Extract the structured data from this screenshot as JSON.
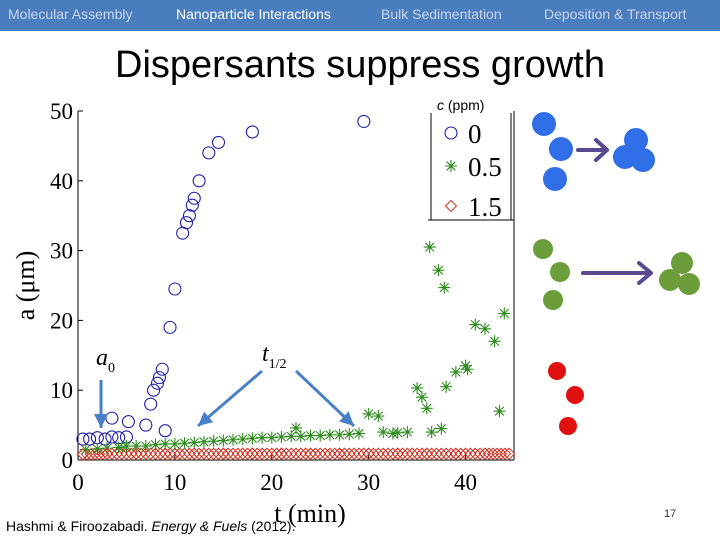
{
  "nav": {
    "items": [
      {
        "label": "Molecular Assembly",
        "active": false
      },
      {
        "label": "Nanoparticle Interactions",
        "active": true
      },
      {
        "label": "Bulk Sedimentation",
        "active": false
      },
      {
        "label": "Deposition & Transport",
        "active": false
      }
    ]
  },
  "slide": {
    "title": "Dispersants suppress growth",
    "legend_header_var": "c",
    "legend_header_unit": "(ppm)",
    "citation_authors": "Hashmi & Firoozabadi.",
    "citation_journal": "Energy & Fuels",
    "citation_year": "(2012).",
    "page_number": "17"
  },
  "annotations": {
    "a0_base": "a",
    "a0_sub": "0",
    "thalf_base": "t",
    "thalf_sub": "1/2"
  },
  "colors": {
    "series_0": "#1f1fa8",
    "series_05": "#2e8b1e",
    "series_15": "#d03020",
    "arrow": "#4a80c8",
    "cluster_blue": "#2f6ee6",
    "cluster_green": "#6b9e3a",
    "cluster_red": "#e01010",
    "cluster_arrow": "#5a4890"
  },
  "chart_data": {
    "type": "scatter",
    "title": "",
    "xlabel": "t (min)",
    "ylabel": "a (μm)",
    "xlim": [
      0,
      45
    ],
    "ylim": [
      0,
      50
    ],
    "xticks": [
      "0",
      "10",
      "20",
      "30",
      "40"
    ],
    "yticks": [
      "0",
      "10",
      "20",
      "30",
      "40",
      "50"
    ],
    "legend_position": "top-right",
    "series": [
      {
        "name": "0",
        "marker": "circle",
        "points": [
          [
            0.5,
            3
          ],
          [
            1.2,
            3
          ],
          [
            2,
            3.2
          ],
          [
            2.8,
            3
          ],
          [
            3.5,
            3.3
          ],
          [
            4.2,
            3.2
          ],
          [
            5,
            3.3
          ],
          [
            3.5,
            6
          ],
          [
            5.2,
            5.5
          ],
          [
            7,
            5
          ],
          [
            9,
            4.2
          ],
          [
            7.5,
            8
          ],
          [
            7.8,
            10
          ],
          [
            8.2,
            11
          ],
          [
            8.4,
            11.8
          ],
          [
            8.7,
            13
          ],
          [
            9.5,
            19
          ],
          [
            10,
            24.5
          ],
          [
            10.8,
            32.5
          ],
          [
            11.2,
            34
          ],
          [
            11.5,
            35
          ],
          [
            11.8,
            36.5
          ],
          [
            12,
            37.5
          ],
          [
            12.5,
            40
          ],
          [
            13.5,
            44
          ],
          [
            14.5,
            45.5
          ],
          [
            18,
            47
          ],
          [
            29.5,
            48.5
          ]
        ]
      },
      {
        "name": "0.5",
        "marker": "asterisk",
        "points": [
          [
            0.8,
            1.5
          ],
          [
            2,
            1.6
          ],
          [
            3,
            1.7
          ],
          [
            4.2,
            1.8
          ],
          [
            5,
            2
          ],
          [
            6,
            2
          ],
          [
            7,
            2
          ],
          [
            8,
            2.2
          ],
          [
            9,
            2.3
          ],
          [
            10,
            2.3
          ],
          [
            11,
            2.4
          ],
          [
            12,
            2.5
          ],
          [
            13,
            2.6
          ],
          [
            14,
            2.7
          ],
          [
            15,
            2.8
          ],
          [
            16,
            2.9
          ],
          [
            17,
            3
          ],
          [
            18,
            3.1
          ],
          [
            19,
            3.2
          ],
          [
            20,
            3.2
          ],
          [
            21,
            3.3
          ],
          [
            22,
            3.4
          ],
          [
            22.5,
            4.6
          ],
          [
            23,
            3.4
          ],
          [
            24,
            3.5
          ],
          [
            25,
            3.5
          ],
          [
            26,
            3.6
          ],
          [
            27,
            3.6
          ],
          [
            28,
            3.7
          ],
          [
            29,
            3.8
          ],
          [
            30,
            6.6
          ],
          [
            31,
            6.3
          ],
          [
            31.5,
            4
          ],
          [
            32.5,
            3.8
          ],
          [
            33,
            3.9
          ],
          [
            34,
            4
          ],
          [
            35,
            10.3
          ],
          [
            35.5,
            9
          ],
          [
            36,
            7.4
          ],
          [
            36.5,
            4
          ],
          [
            37.5,
            4.5
          ],
          [
            38,
            10.5
          ],
          [
            39,
            12.6
          ],
          [
            40.2,
            13
          ],
          [
            40,
            13.5
          ],
          [
            41,
            19.4
          ],
          [
            42,
            18.8
          ],
          [
            43,
            17
          ],
          [
            43.5,
            7
          ],
          [
            44,
            21
          ],
          [
            36.3,
            30.5
          ],
          [
            37.2,
            27.2
          ],
          [
            37.8,
            24.7
          ]
        ]
      },
      {
        "name": "1.5",
        "marker": "diamond",
        "points": [
          [
            0.5,
            0.8
          ],
          [
            3,
            0.9
          ],
          [
            6,
            0.9
          ],
          [
            9,
            0.9
          ],
          [
            12,
            0.9
          ],
          [
            15,
            0.9
          ],
          [
            18,
            0.9
          ],
          [
            21,
            0.9
          ],
          [
            24,
            0.9
          ],
          [
            27,
            0.9
          ],
          [
            30,
            0.9
          ],
          [
            33,
            0.9
          ],
          [
            36,
            0.9
          ],
          [
            39,
            0.9
          ],
          [
            42,
            0.9
          ],
          [
            44.5,
            0.9
          ]
        ]
      }
    ]
  }
}
